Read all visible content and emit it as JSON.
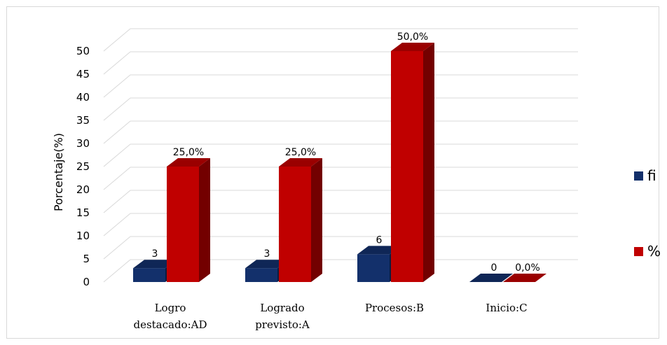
{
  "chart_data": {
    "type": "bar",
    "categories": [
      [
        "Logro",
        "destacado:AD"
      ],
      [
        "Logrado",
        "previsto:A"
      ],
      [
        "Procesos:B"
      ],
      [
        "Inicio:C"
      ]
    ],
    "series": [
      {
        "name": "fi",
        "values": [
          3,
          3,
          6,
          0
        ],
        "labels": [
          "3",
          "3",
          "6",
          "0"
        ],
        "color": "#13306b"
      },
      {
        "name": "%",
        "values": [
          25,
          25,
          50,
          0
        ],
        "labels": [
          "25,0%",
          "25,0%",
          "50,0%",
          "0,0%"
        ],
        "color": "#c00000"
      }
    ],
    "ylabel": "Porcentaje(%)",
    "yticks": [
      0,
      5,
      10,
      15,
      20,
      25,
      30,
      35,
      40,
      45,
      50
    ],
    "ylim": [
      0,
      50
    ],
    "grid": true,
    "legend_position": "right",
    "style": "3d-column"
  }
}
